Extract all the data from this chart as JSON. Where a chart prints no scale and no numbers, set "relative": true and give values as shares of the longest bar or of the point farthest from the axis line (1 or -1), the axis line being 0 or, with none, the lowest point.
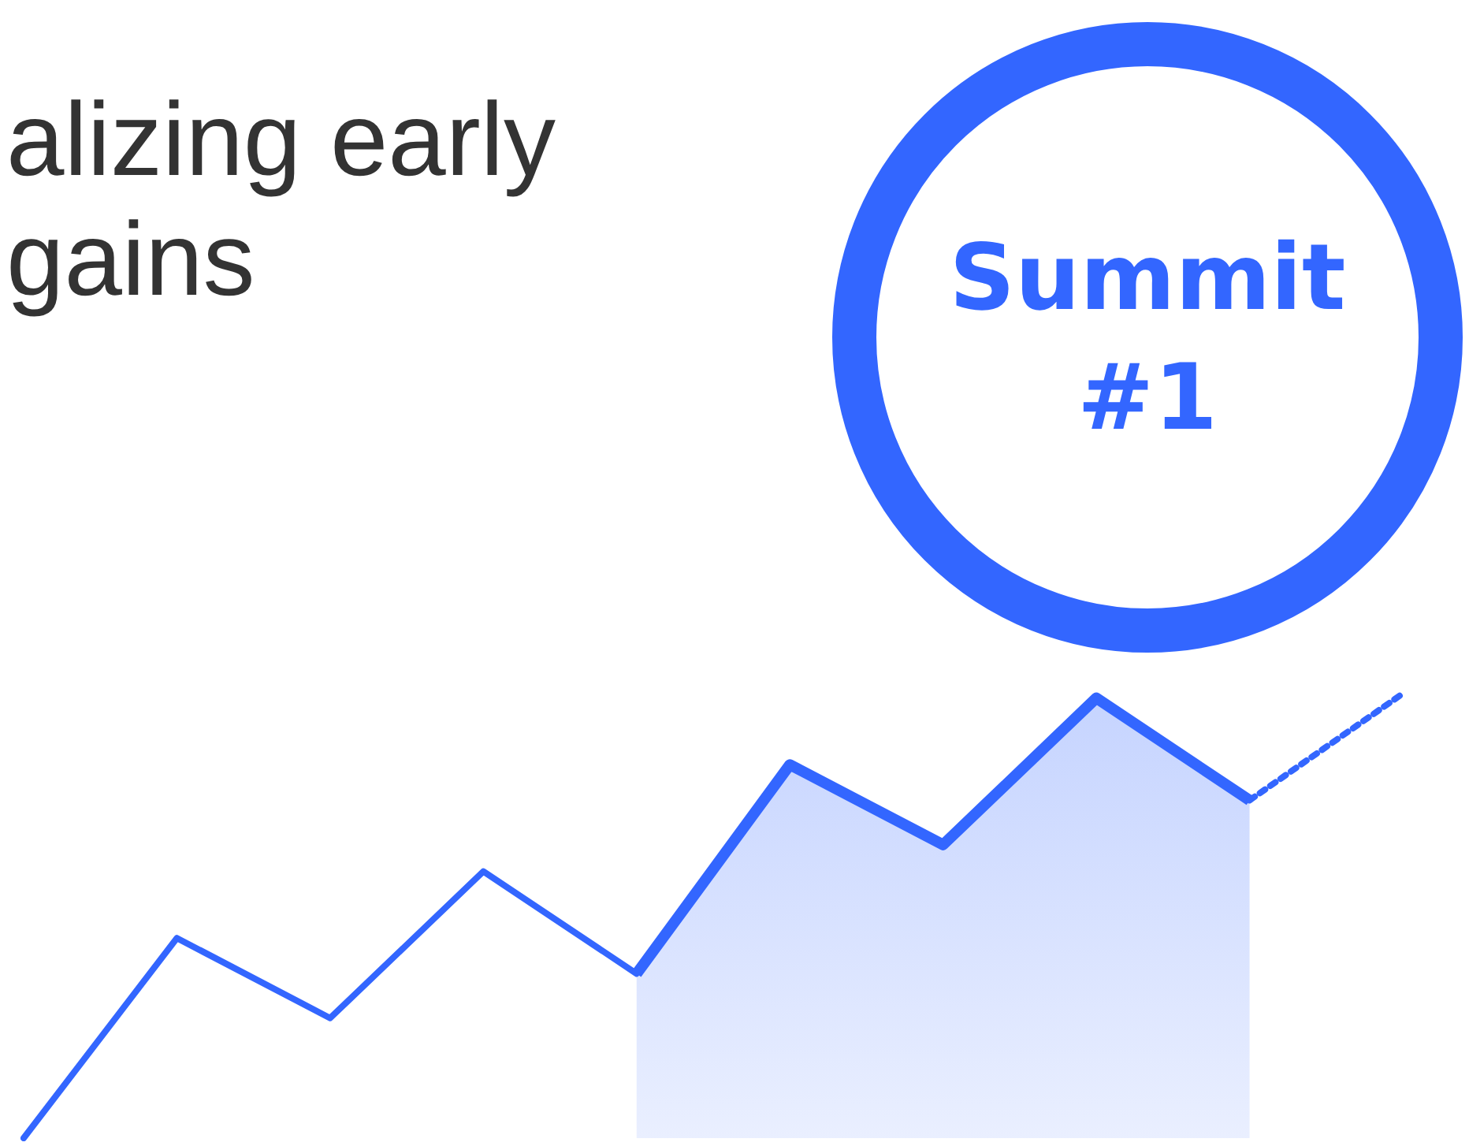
{
  "chart_data": {
    "type": "line",
    "title": "alizing early gains",
    "annotations": [
      "Summit #1"
    ],
    "relative": true,
    "marker": "none",
    "categories": [
      null,
      null,
      null,
      null,
      null,
      null,
      null,
      null,
      null,
      null
    ],
    "series": [
      {
        "type": "line",
        "color": "#3366ff",
        "values": [
          0,
          0.45,
          0.27,
          0.6,
          0.37,
          null,
          null,
          null,
          null,
          null
        ]
      },
      {
        "type": "area",
        "color": "#3366ff",
        "values": [
          null,
          null,
          null,
          null,
          0.37,
          0.84,
          0.66,
          0.99,
          0.76,
          null
        ]
      },
      {
        "type": "line",
        "color": "#3366ff",
        "line_style": "dotted",
        "values": [
          null,
          null,
          null,
          null,
          null,
          null,
          null,
          null,
          0.76,
          1
        ]
      }
    ]
  }
}
